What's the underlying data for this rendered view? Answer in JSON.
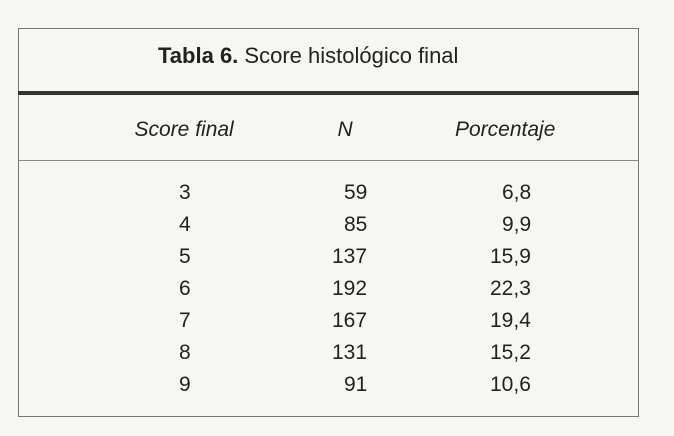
{
  "table": {
    "title_label": "Tabla 6.",
    "title_text": "Score histológico final",
    "headers": [
      "Score final",
      "N",
      "Porcentaje"
    ],
    "rows": [
      [
        "3",
        "59",
        "6,8"
      ],
      [
        "4",
        "85",
        "9,9"
      ],
      [
        "5",
        "137",
        "15,9"
      ],
      [
        "6",
        "192",
        "22,3"
      ],
      [
        "7",
        "167",
        "19,4"
      ],
      [
        "8",
        "131",
        "15,2"
      ],
      [
        "9",
        "91",
        "10,6"
      ]
    ]
  }
}
